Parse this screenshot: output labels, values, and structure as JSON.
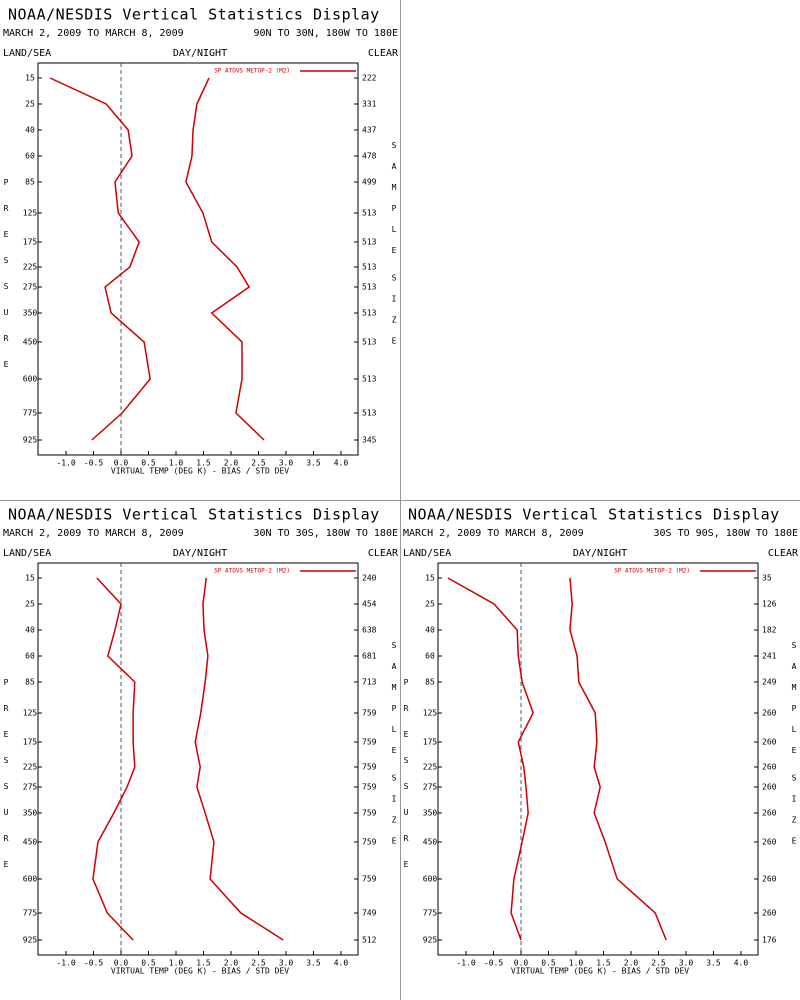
{
  "chart_data": [
    {
      "type": "line",
      "title": "NOAA/NESDIS Vertical Statistics Display",
      "subtitle": "MARCH 2, 2009 TO MARCH 8, 2009",
      "region": "90N TO 30N, 180W TO 180E",
      "left_label": "LAND/SEA",
      "center_label": "DAY/NIGHT",
      "right_label": "CLEAR",
      "y_label": "PRESSURE",
      "y2_label": "SAMPLE SIZE",
      "x_label": "VIRTUAL TEMP (DEG K) - BIAS / STD DEV",
      "categories": [
        15,
        25,
        40,
        60,
        85,
        125,
        175,
        225,
        275,
        350,
        450,
        600,
        775,
        925
      ],
      "sample_sizes": [
        222,
        331,
        437,
        478,
        499,
        513,
        513,
        513,
        513,
        513,
        513,
        513,
        513,
        345
      ],
      "series": [
        {
          "name": "SP ATOVS METOP-2 (M2)",
          "color": "#cc0000",
          "values": [
            -1.29,
            -0.27,
            0.13,
            0.2,
            -0.11,
            -0.05,
            0.33,
            0.16,
            -0.29,
            -0.18,
            0.42,
            0.53,
            0.02,
            -0.53
          ]
        },
        {
          "color": "#cc0000",
          "values": [
            1.6,
            1.38,
            1.31,
            1.29,
            1.18,
            1.49,
            1.65,
            2.11,
            2.33,
            1.65,
            2.2,
            2.2,
            2.09,
            2.6
          ]
        }
      ],
      "xlim": [
        -1.51,
        4.31
      ],
      "xticks": [
        {
          "value": -1.0,
          "label": "-1.0"
        },
        {
          "value": -0.5,
          "label": "-0.5"
        },
        {
          "value": 0.0,
          "label": "0.0"
        },
        {
          "value": 0.5,
          "label": "0.5"
        },
        {
          "value": 1.0,
          "label": "1.0"
        },
        {
          "value": 1.5,
          "label": "1.5"
        },
        {
          "value": 2.0,
          "label": "2.0"
        },
        {
          "value": 2.5,
          "label": "2.5"
        },
        {
          "value": 3.0,
          "label": "3.0"
        },
        {
          "value": 3.5,
          "label": "3.5"
        },
        {
          "value": 4.0,
          "label": "4.0"
        }
      ]
    },
    {
      "type": "line",
      "title": "NOAA/NESDIS Vertical Statistics Display",
      "subtitle": "MARCH 2, 2009 TO MARCH 8, 2009",
      "region": "30N TO 30S, 180W TO 180E",
      "left_label": "LAND/SEA",
      "center_label": "DAY/NIGHT",
      "right_label": "CLEAR",
      "y_label": "PRESSURE",
      "y2_label": "SAMPLE SIZE",
      "x_label": "VIRTUAL TEMP (DEG K) - BIAS / STD DEV",
      "categories": [
        15,
        25,
        40,
        60,
        85,
        125,
        175,
        225,
        275,
        350,
        450,
        600,
        775,
        925
      ],
      "sample_sizes": [
        240,
        454,
        638,
        681,
        713,
        759,
        759,
        759,
        759,
        759,
        759,
        759,
        749,
        512
      ],
      "series": [
        {
          "name": "SP ATOVS METOP-2 (M2)",
          "color": "#cc0000",
          "values": [
            -0.44,
            0,
            -0.11,
            -0.24,
            0.25,
            0.22,
            0.22,
            0.25,
            0.11,
            -0.13,
            -0.42,
            -0.51,
            -0.25,
            0.22
          ]
        },
        {
          "color": "#cc0000",
          "values": [
            1.55,
            1.49,
            1.51,
            1.58,
            1.53,
            1.45,
            1.35,
            1.44,
            1.38,
            1.53,
            1.69,
            1.62,
            2.18,
            2.95
          ]
        }
      ],
      "xlim": [
        -1.51,
        4.31
      ],
      "xticks": [
        {
          "value": -1.0,
          "label": "-1.0"
        },
        {
          "value": -0.5,
          "label": "-0.5"
        },
        {
          "value": 0.0,
          "label": "0.0"
        },
        {
          "value": 0.5,
          "label": "0.5"
        },
        {
          "value": 1.0,
          "label": "1.0"
        },
        {
          "value": 1.5,
          "label": "1.5"
        },
        {
          "value": 2.0,
          "label": "2.0"
        },
        {
          "value": 2.5,
          "label": "2.5"
        },
        {
          "value": 3.0,
          "label": "3.0"
        },
        {
          "value": 3.5,
          "label": "3.5"
        },
        {
          "value": 4.0,
          "label": "4.0"
        }
      ]
    },
    {
      "type": "line",
      "title": "NOAA/NESDIS Vertical Statistics Display",
      "subtitle": "MARCH 2, 2009 TO MARCH 8, 2009",
      "region": "30S TO 90S, 180W TO 180E",
      "left_label": "LAND/SEA",
      "center_label": "DAY/NIGHT",
      "right_label": "CLEAR",
      "y_label": "PRESSURE",
      "y2_label": "SAMPLE SIZE",
      "x_label": "VIRTUAL TEMP (DEG K) - BIAS / STD DEV",
      "categories": [
        15,
        25,
        40,
        60,
        85,
        125,
        175,
        225,
        275,
        350,
        450,
        600,
        775,
        925
      ],
      "sample_sizes": [
        35,
        126,
        182,
        241,
        249,
        260,
        260,
        260,
        260,
        260,
        260,
        260,
        260,
        176
      ],
      "series": [
        {
          "name": "SP ATOVS METOP-2 (M2)",
          "color": "#cc0000",
          "values": [
            -1.33,
            -0.49,
            -0.07,
            -0.05,
            0.02,
            0.22,
            -0.05,
            0.05,
            0.09,
            0.13,
            0.02,
            -0.13,
            -0.18,
            0
          ]
        },
        {
          "color": "#cc0000",
          "values": [
            0.89,
            0.93,
            0.89,
            1.02,
            1.05,
            1.35,
            1.38,
            1.33,
            1.44,
            1.33,
            1.53,
            1.75,
            2.44,
            2.64
          ]
        }
      ],
      "xlim": [
        -1.51,
        4.31
      ],
      "xticks": [
        {
          "value": -1.0,
          "label": "-1.0"
        },
        {
          "value": -0.5,
          "label": "-0.5"
        },
        {
          "value": 0.0,
          "label": "0.0"
        },
        {
          "value": 0.5,
          "label": "0.5"
        },
        {
          "value": 1.0,
          "label": "1.0"
        },
        {
          "value": 1.5,
          "label": "1.5"
        },
        {
          "value": 2.0,
          "label": "2.0"
        },
        {
          "value": 2.5,
          "label": "2.5"
        },
        {
          "value": 3.0,
          "label": "3.0"
        },
        {
          "value": 3.5,
          "label": "3.5"
        },
        {
          "value": 4.0,
          "label": "4.0"
        }
      ]
    }
  ]
}
